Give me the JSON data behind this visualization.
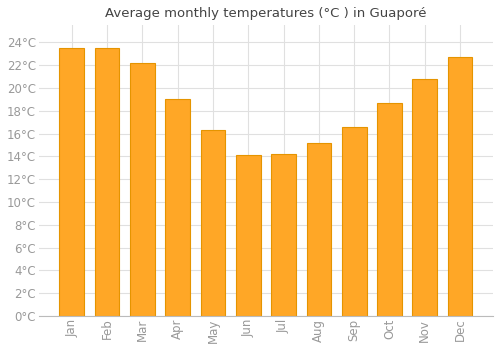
{
  "title": "Average monthly temperatures (°C ) in Guaporé",
  "months": [
    "Jan",
    "Feb",
    "Mar",
    "Apr",
    "May",
    "Jun",
    "Jul",
    "Aug",
    "Sep",
    "Oct",
    "Nov",
    "Dec"
  ],
  "values": [
    23.5,
    23.5,
    22.2,
    19.0,
    16.3,
    14.1,
    14.2,
    15.2,
    16.6,
    18.7,
    20.8,
    22.7
  ],
  "bar_color": "#FFA726",
  "bar_edge_color": "#E59400",
  "background_color": "#FFFFFF",
  "grid_color": "#E0E0E0",
  "tick_label_color": "#999999",
  "title_color": "#444444",
  "ylim": [
    0,
    25.5
  ],
  "yticks": [
    0,
    2,
    4,
    6,
    8,
    10,
    12,
    14,
    16,
    18,
    20,
    22,
    24
  ],
  "bar_width": 0.7,
  "title_fontsize": 9.5,
  "tick_fontsize": 8.5
}
